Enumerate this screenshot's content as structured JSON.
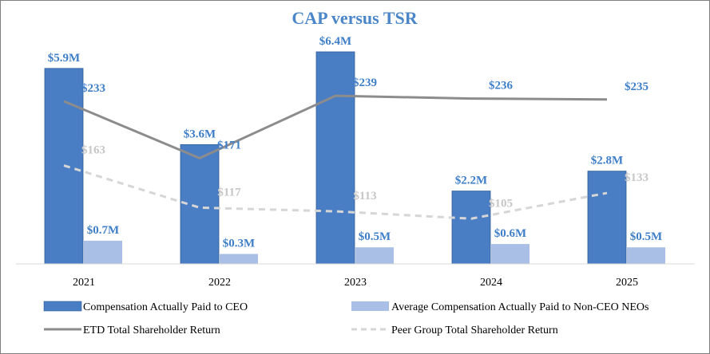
{
  "chart_data": {
    "type": "bar",
    "title": "CAP versus TSR",
    "categories": [
      "2021",
      "2022",
      "2023",
      "2024",
      "2025"
    ],
    "colors": {
      "ceo": "#4a7ec4",
      "neo": "#a9bfe6",
      "etd": "#8c8c8c",
      "peer": "#d6d6d6",
      "label_blue": "#3f7fc8",
      "label_grey": "#c6c6c6"
    },
    "series": [
      {
        "name": "Compensation Actually Paid to CEO",
        "kind": "bar",
        "values": [
          5.9,
          3.6,
          6.4,
          2.2,
          2.8
        ],
        "labels": [
          "$5.9M",
          "$3.6M",
          "$6.4M",
          "$2.2M",
          "$2.8M"
        ]
      },
      {
        "name": "Average Compensation Actually Paid to Non-CEO NEOs",
        "kind": "bar",
        "values": [
          0.7,
          0.3,
          0.5,
          0.6,
          0.5
        ],
        "labels": [
          "$0.7M",
          "$0.3M",
          "$0.5M",
          "$0.6M",
          "$0.5M"
        ]
      },
      {
        "name": "ETD Total Shareholder Return",
        "kind": "line",
        "values": [
          233,
          171,
          239,
          236,
          235
        ],
        "labels": [
          "$233",
          "$171",
          "$239",
          "$236",
          "$235"
        ]
      },
      {
        "name": "Peer Group Total Shareholder Return",
        "kind": "line-dashed",
        "values": [
          163,
          117,
          113,
          105,
          133
        ],
        "labels": [
          "$163",
          "$117",
          "$113",
          "$105",
          "$133"
        ]
      }
    ],
    "bar_axis_range": [
      0,
      7.0
    ],
    "line_axis_range": [
      0,
      280
    ],
    "grid": false,
    "legend_position": "bottom"
  }
}
